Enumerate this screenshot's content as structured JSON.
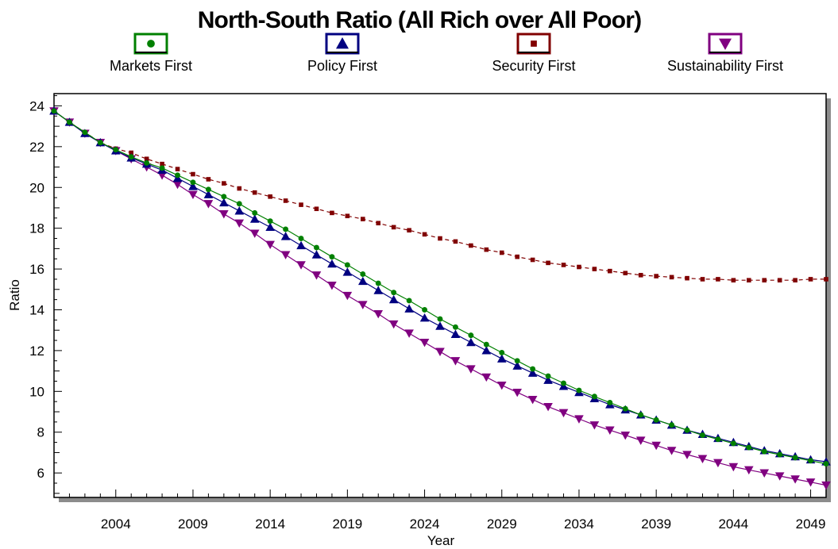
{
  "chart_data": {
    "type": "line",
    "title": "North-South Ratio (All Rich over All Poor)",
    "xlabel": "Year",
    "ylabel": "Ratio",
    "xlim": [
      2000,
      2050
    ],
    "ylim": [
      4.8,
      24.6
    ],
    "x_ticks": [
      2004,
      2009,
      2014,
      2019,
      2024,
      2029,
      2034,
      2039,
      2044,
      2049
    ],
    "y_ticks": [
      6,
      8,
      10,
      12,
      14,
      16,
      18,
      20,
      22,
      24
    ],
    "grid": false,
    "legend_position": "top",
    "series": [
      {
        "name": "Markets First",
        "color": "#008000",
        "marker": "circle",
        "line_style": "solid",
        "x": [
          2000,
          2001,
          2002,
          2003,
          2004,
          2005,
          2006,
          2007,
          2008,
          2009,
          2010,
          2011,
          2012,
          2013,
          2014,
          2015,
          2016,
          2017,
          2018,
          2019,
          2020,
          2021,
          2022,
          2023,
          2024,
          2025,
          2026,
          2027,
          2028,
          2029,
          2030,
          2031,
          2032,
          2033,
          2034,
          2035,
          2036,
          2037,
          2038,
          2039,
          2040,
          2041,
          2042,
          2043,
          2044,
          2045,
          2046,
          2047,
          2048,
          2049,
          2050
        ],
        "values": [
          23.75,
          23.2,
          22.7,
          22.2,
          21.85,
          21.5,
          21.2,
          20.95,
          20.6,
          20.25,
          19.9,
          19.55,
          19.2,
          18.75,
          18.35,
          17.95,
          17.5,
          17.05,
          16.6,
          16.2,
          15.75,
          15.3,
          14.85,
          14.45,
          14.0,
          13.55,
          13.15,
          12.75,
          12.3,
          11.9,
          11.5,
          11.1,
          10.75,
          10.4,
          10.05,
          9.75,
          9.45,
          9.15,
          8.85,
          8.6,
          8.35,
          8.1,
          7.85,
          7.65,
          7.45,
          7.25,
          7.05,
          6.9,
          6.75,
          6.6,
          6.45
        ]
      },
      {
        "name": "Policy First",
        "color": "#000080",
        "marker": "triangle-up",
        "line_style": "solid",
        "x": [
          2000,
          2001,
          2002,
          2003,
          2004,
          2005,
          2006,
          2007,
          2008,
          2009,
          2010,
          2011,
          2012,
          2013,
          2014,
          2015,
          2016,
          2017,
          2018,
          2019,
          2020,
          2021,
          2022,
          2023,
          2024,
          2025,
          2026,
          2027,
          2028,
          2029,
          2030,
          2031,
          2032,
          2033,
          2034,
          2035,
          2036,
          2037,
          2038,
          2039,
          2040,
          2041,
          2042,
          2043,
          2044,
          2045,
          2046,
          2047,
          2048,
          2049,
          2050
        ],
        "values": [
          23.75,
          23.2,
          22.65,
          22.2,
          21.8,
          21.45,
          21.15,
          20.85,
          20.45,
          20.05,
          19.65,
          19.25,
          18.85,
          18.45,
          18.05,
          17.6,
          17.15,
          16.7,
          16.25,
          15.85,
          15.4,
          14.95,
          14.5,
          14.05,
          13.6,
          13.2,
          12.8,
          12.4,
          12.0,
          11.6,
          11.25,
          10.9,
          10.55,
          10.25,
          9.95,
          9.65,
          9.35,
          9.1,
          8.85,
          8.6,
          8.35,
          8.1,
          7.9,
          7.7,
          7.5,
          7.3,
          7.1,
          6.95,
          6.8,
          6.65,
          6.55
        ]
      },
      {
        "name": "Security First",
        "color": "#800000",
        "marker": "square",
        "line_style": "dashed",
        "x": [
          2000,
          2001,
          2002,
          2003,
          2004,
          2005,
          2006,
          2007,
          2008,
          2009,
          2010,
          2011,
          2012,
          2013,
          2014,
          2015,
          2016,
          2017,
          2018,
          2019,
          2020,
          2021,
          2022,
          2023,
          2024,
          2025,
          2026,
          2027,
          2028,
          2029,
          2030,
          2031,
          2032,
          2033,
          2034,
          2035,
          2036,
          2037,
          2038,
          2039,
          2040,
          2041,
          2042,
          2043,
          2044,
          2045,
          2046,
          2047,
          2048,
          2049,
          2050
        ],
        "values": [
          23.75,
          23.2,
          22.7,
          22.2,
          21.9,
          21.7,
          21.4,
          21.15,
          20.9,
          20.65,
          20.4,
          20.2,
          19.95,
          19.75,
          19.55,
          19.35,
          19.15,
          18.95,
          18.75,
          18.6,
          18.45,
          18.25,
          18.05,
          17.9,
          17.7,
          17.5,
          17.35,
          17.15,
          16.95,
          16.8,
          16.6,
          16.45,
          16.3,
          16.2,
          16.1,
          16.0,
          15.9,
          15.8,
          15.7,
          15.65,
          15.6,
          15.55,
          15.5,
          15.5,
          15.45,
          15.45,
          15.45,
          15.45,
          15.45,
          15.5,
          15.5
        ]
      },
      {
        "name": "Sustainability First",
        "color": "#800080",
        "marker": "triangle-down",
        "line_style": "solid",
        "x": [
          2000,
          2001,
          2002,
          2003,
          2004,
          2005,
          2006,
          2007,
          2008,
          2009,
          2010,
          2011,
          2012,
          2013,
          2014,
          2015,
          2016,
          2017,
          2018,
          2019,
          2020,
          2021,
          2022,
          2023,
          2024,
          2025,
          2026,
          2027,
          2028,
          2029,
          2030,
          2031,
          2032,
          2033,
          2034,
          2035,
          2036,
          2037,
          2038,
          2039,
          2040,
          2041,
          2042,
          2043,
          2044,
          2045,
          2046,
          2047,
          2048,
          2049,
          2050
        ],
        "values": [
          23.75,
          23.2,
          22.65,
          22.2,
          21.8,
          21.4,
          21.0,
          20.6,
          20.15,
          19.65,
          19.2,
          18.7,
          18.25,
          17.75,
          17.2,
          16.7,
          16.2,
          15.7,
          15.2,
          14.7,
          14.25,
          13.8,
          13.3,
          12.85,
          12.4,
          11.95,
          11.5,
          11.1,
          10.7,
          10.3,
          9.95,
          9.6,
          9.25,
          8.95,
          8.65,
          8.35,
          8.1,
          7.85,
          7.6,
          7.35,
          7.1,
          6.9,
          6.7,
          6.5,
          6.3,
          6.15,
          6.0,
          5.85,
          5.7,
          5.55,
          5.4
        ]
      }
    ]
  }
}
